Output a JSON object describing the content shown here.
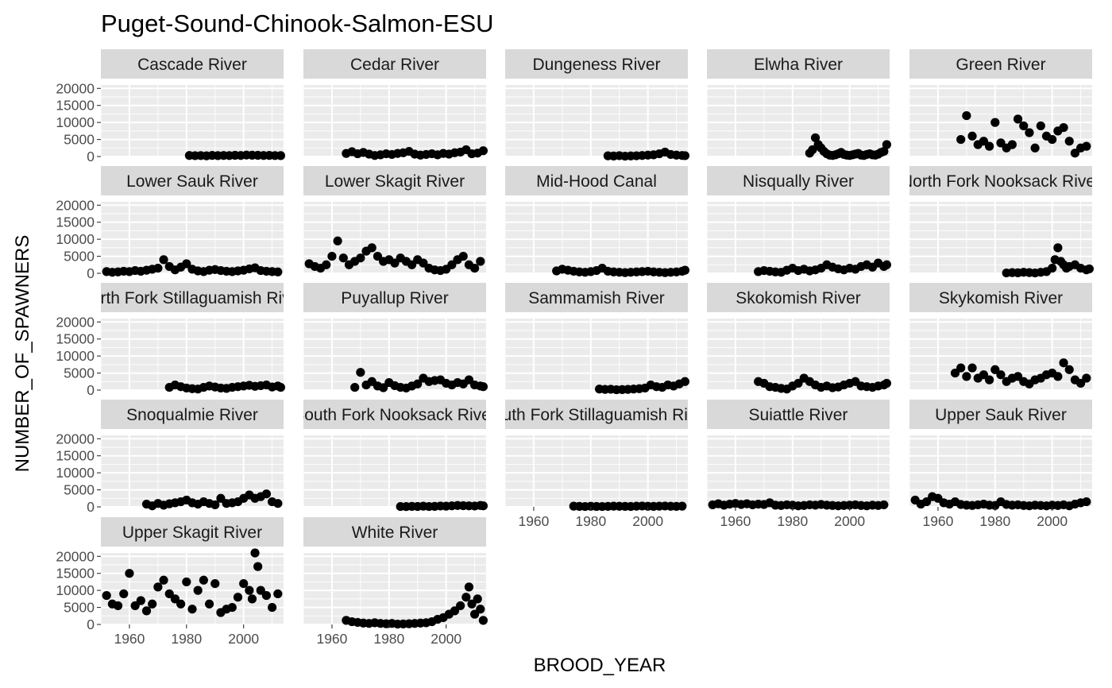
{
  "chart_data": {
    "type": "scatter",
    "title": "Puget-Sound-Chinook-Salmon-ESU",
    "xlabel": "BROOD_YEAR",
    "ylabel": "NUMBER_OF_SPAWNERS",
    "xlim": [
      1950,
      2014
    ],
    "ylim": [
      0,
      21000
    ],
    "x_ticks": [
      1960,
      1980,
      2000
    ],
    "y_ticks": [
      0,
      5000,
      10000,
      15000,
      20000
    ],
    "x_tick_labels": [
      "1960",
      "1980",
      "2000"
    ],
    "y_tick_labels": [
      "0",
      "5000",
      "10000",
      "15000",
      "20000"
    ],
    "grid": true,
    "facet_columns": 5,
    "point_color": "#000000",
    "panel_background": "#ebebeb",
    "strip_background": "#d9d9d9",
    "gridline_color": "#ffffff",
    "panels": [
      {
        "name": "Cascade River",
        "x": [
          1981,
          1983,
          1985,
          1987,
          1989,
          1991,
          1993,
          1995,
          1997,
          1999,
          2001,
          2003,
          2005,
          2007,
          2009,
          2011,
          2013
        ],
        "y": [
          300,
          250,
          280,
          200,
          320,
          260,
          300,
          280,
          350,
          300,
          420,
          380,
          350,
          300,
          320,
          280,
          260
        ]
      },
      {
        "name": "Cedar River",
        "x": [
          1965,
          1967,
          1969,
          1971,
          1973,
          1975,
          1977,
          1979,
          1981,
          1983,
          1985,
          1987,
          1989,
          1991,
          1993,
          1995,
          1997,
          1999,
          2001,
          2003,
          2005,
          2007,
          2009,
          2011,
          2013
        ],
        "y": [
          900,
          1400,
          800,
          1200,
          700,
          300,
          500,
          800,
          600,
          900,
          1100,
          1500,
          700,
          400,
          600,
          800,
          500,
          900,
          700,
          1100,
          1300,
          2000,
          800,
          1000,
          1700
        ]
      },
      {
        "name": "Dungeness River",
        "x": [
          1986,
          1988,
          1990,
          1992,
          1994,
          1996,
          1998,
          2000,
          2002,
          2004,
          2006,
          2008,
          2010,
          2012,
          2013
        ],
        "y": [
          200,
          150,
          250,
          100,
          180,
          220,
          300,
          400,
          500,
          800,
          1300,
          600,
          400,
          300,
          250
        ]
      },
      {
        "name": "Elwha River",
        "x": [
          1986,
          1987,
          1988,
          1989,
          1990,
          1991,
          1992,
          1993,
          1994,
          1995,
          1996,
          1997,
          1998,
          1999,
          2000,
          2001,
          2002,
          2003,
          2004,
          2005,
          2006,
          2007,
          2008,
          2009,
          2010,
          2011,
          2012,
          2013
        ],
        "y": [
          1000,
          2000,
          5500,
          3500,
          2500,
          1500,
          800,
          400,
          300,
          500,
          800,
          1200,
          600,
          400,
          300,
          500,
          700,
          900,
          400,
          300,
          600,
          800,
          500,
          400,
          700,
          1200,
          1500,
          3500
        ]
      },
      {
        "name": "Green River",
        "x": [
          1968,
          1970,
          1972,
          1974,
          1976,
          1978,
          1980,
          1982,
          1984,
          1986,
          1988,
          1990,
          1992,
          1994,
          1996,
          1998,
          2000,
          2002,
          2004,
          2006,
          2008,
          2010,
          2012
        ],
        "y": [
          5000,
          12000,
          6000,
          3500,
          4500,
          3000,
          10000,
          4000,
          2500,
          3500,
          11000,
          9000,
          7000,
          2500,
          9000,
          6000,
          5000,
          7500,
          8500,
          4500,
          1000,
          2500,
          3000
        ]
      },
      {
        "name": "Lower Sauk River",
        "x": [
          1952,
          1954,
          1956,
          1958,
          1960,
          1962,
          1964,
          1966,
          1968,
          1970,
          1972,
          1974,
          1976,
          1978,
          1980,
          1982,
          1984,
          1986,
          1988,
          1990,
          1992,
          1994,
          1996,
          1998,
          2000,
          2002,
          2004,
          2006,
          2008,
          2010,
          2012
        ],
        "y": [
          500,
          300,
          400,
          600,
          500,
          800,
          600,
          900,
          1200,
          1500,
          4000,
          2000,
          1000,
          1800,
          2800,
          1200,
          700,
          500,
          900,
          1100,
          800,
          600,
          500,
          700,
          900,
          1300,
          1600,
          800,
          600,
          500,
          400
        ]
      },
      {
        "name": "Lower Skagit River",
        "x": [
          1952,
          1954,
          1956,
          1958,
          1960,
          1962,
          1964,
          1966,
          1968,
          1970,
          1972,
          1974,
          1976,
          1978,
          1980,
          1982,
          1984,
          1986,
          1988,
          1990,
          1992,
          1994,
          1996,
          1998,
          2000,
          2002,
          2004,
          2006,
          2008,
          2010,
          2012
        ],
        "y": [
          2800,
          2000,
          1500,
          2500,
          5000,
          9500,
          4500,
          2500,
          3500,
          4500,
          6500,
          7500,
          5000,
          3500,
          4000,
          3000,
          4500,
          3500,
          2500,
          4000,
          3000,
          1500,
          1000,
          800,
          1200,
          2500,
          4000,
          5000,
          2500,
          1500,
          3500
        ]
      },
      {
        "name": "Mid-Hood Canal",
        "x": [
          1968,
          1970,
          1972,
          1974,
          1976,
          1978,
          1980,
          1982,
          1984,
          1986,
          1988,
          1990,
          1992,
          1994,
          1996,
          1998,
          2000,
          2002,
          2004,
          2006,
          2008,
          2010,
          2012,
          2013
        ],
        "y": [
          700,
          1200,
          900,
          600,
          400,
          300,
          500,
          800,
          1500,
          600,
          400,
          300,
          200,
          300,
          400,
          500,
          600,
          400,
          300,
          200,
          300,
          400,
          600,
          900
        ]
      },
      {
        "name": "Nisqually River",
        "x": [
          1968,
          1970,
          1972,
          1974,
          1976,
          1978,
          1980,
          1982,
          1984,
          1986,
          1988,
          1990,
          1992,
          1994,
          1996,
          1998,
          2000,
          2002,
          2004,
          2006,
          2008,
          2010,
          2012,
          2013
        ],
        "y": [
          500,
          800,
          600,
          400,
          300,
          900,
          1500,
          800,
          1200,
          700,
          1000,
          1500,
          2500,
          1800,
          1300,
          1000,
          1500,
          1200,
          2000,
          2500,
          1800,
          3000,
          2000,
          2500
        ]
      },
      {
        "name": "North Fork Nooksack River",
        "x": [
          1984,
          1986,
          1988,
          1990,
          1992,
          1994,
          1996,
          1998,
          2000,
          2001,
          2002,
          2003,
          2004,
          2005,
          2006,
          2008,
          2010,
          2012,
          2013
        ],
        "y": [
          100,
          200,
          150,
          300,
          200,
          100,
          300,
          500,
          1500,
          4000,
          7500,
          3500,
          2500,
          1500,
          2000,
          2500,
          1500,
          1000,
          1300
        ]
      },
      {
        "name": "North Fork Stillaguamish River",
        "x": [
          1974,
          1976,
          1978,
          1980,
          1982,
          1984,
          1986,
          1988,
          1990,
          1992,
          1994,
          1996,
          1998,
          2000,
          2002,
          2004,
          2006,
          2008,
          2010,
          2012,
          2013
        ],
        "y": [
          800,
          1500,
          1000,
          600,
          400,
          300,
          800,
          1200,
          900,
          600,
          500,
          800,
          1000,
          1200,
          1400,
          1100,
          1300,
          1500,
          900,
          1200,
          800
        ]
      },
      {
        "name": "Puyallup River",
        "x": [
          1968,
          1970,
          1972,
          1974,
          1976,
          1978,
          1980,
          1982,
          1984,
          1986,
          1988,
          1990,
          1992,
          1994,
          1996,
          1998,
          2000,
          2002,
          2004,
          2006,
          2008,
          2010,
          2012,
          2013
        ],
        "y": [
          800,
          5200,
          1500,
          2500,
          1200,
          700,
          2200,
          1300,
          800,
          600,
          1200,
          1800,
          3500,
          2500,
          2800,
          3000,
          2000,
          1500,
          2200,
          1800,
          3000,
          1500,
          1200,
          1000
        ]
      },
      {
        "name": "Sammamish River",
        "x": [
          1983,
          1985,
          1987,
          1989,
          1991,
          1993,
          1995,
          1997,
          1999,
          2001,
          2003,
          2005,
          2007,
          2009,
          2011,
          2013
        ],
        "y": [
          300,
          200,
          250,
          100,
          150,
          200,
          300,
          400,
          600,
          1500,
          1000,
          800,
          1500,
          1200,
          1800,
          2500
        ]
      },
      {
        "name": "Skokomish River",
        "x": [
          1968,
          1970,
          1972,
          1974,
          1976,
          1978,
          1980,
          1982,
          1984,
          1986,
          1988,
          1990,
          1992,
          1994,
          1996,
          1998,
          2000,
          2002,
          2004,
          2006,
          2008,
          2010,
          2012,
          2013
        ],
        "y": [
          2500,
          2000,
          1000,
          800,
          500,
          300,
          1200,
          2000,
          3500,
          2500,
          1500,
          800,
          1200,
          700,
          900,
          1500,
          2000,
          2500,
          1200,
          1000,
          800,
          1200,
          1500,
          2000
        ]
      },
      {
        "name": "Skykomish River",
        "x": [
          1966,
          1968,
          1970,
          1972,
          1974,
          1976,
          1978,
          1980,
          1982,
          1984,
          1986,
          1988,
          1990,
          1992,
          1994,
          1996,
          1998,
          2000,
          2002,
          2004,
          2006,
          2008,
          2010,
          2012
        ],
        "y": [
          5000,
          6500,
          4000,
          6500,
          3500,
          4500,
          3000,
          6000,
          4500,
          2500,
          3500,
          4000,
          2500,
          1800,
          3000,
          3500,
          4500,
          5000,
          4000,
          8000,
          6000,
          3000,
          2000,
          3500
        ]
      },
      {
        "name": "Snoqualmie River",
        "x": [
          1966,
          1968,
          1970,
          1972,
          1974,
          1976,
          1978,
          1980,
          1982,
          1984,
          1986,
          1988,
          1990,
          1992,
          1994,
          1996,
          1998,
          2000,
          2002,
          2004,
          2006,
          2008,
          2010,
          2012
        ],
        "y": [
          800,
          300,
          1000,
          500,
          900,
          1200,
          1500,
          2000,
          1200,
          800,
          1500,
          1000,
          600,
          2500,
          1000,
          1200,
          1500,
          2500,
          3500,
          2500,
          3000,
          3800,
          1500,
          1000
        ]
      },
      {
        "name": "South Fork Nooksack River",
        "x": [
          1984,
          1986,
          1988,
          1990,
          1992,
          1994,
          1996,
          1998,
          2000,
          2002,
          2004,
          2006,
          2008,
          2010,
          2012,
          2013
        ],
        "y": [
          100,
          80,
          150,
          120,
          200,
          100,
          150,
          250,
          200,
          300,
          400,
          350,
          300,
          250,
          400,
          300
        ]
      },
      {
        "name": "South Fork Stillaguamish River",
        "x": [
          1974,
          1976,
          1978,
          1980,
          1982,
          1984,
          1986,
          1988,
          1990,
          1992,
          1994,
          1996,
          1998,
          2000,
          2002,
          2004,
          2006,
          2008,
          2010,
          2012
        ],
        "y": [
          200,
          150,
          100,
          180,
          120,
          100,
          150,
          200,
          180,
          150,
          120,
          200,
          250,
          180,
          150,
          200,
          250,
          180,
          150,
          200
        ]
      },
      {
        "name": "Suiattle River",
        "x": [
          1952,
          1954,
          1956,
          1958,
          1960,
          1962,
          1964,
          1966,
          1968,
          1970,
          1972,
          1974,
          1976,
          1978,
          1980,
          1982,
          1984,
          1986,
          1988,
          1990,
          1992,
          1994,
          1996,
          1998,
          2000,
          2002,
          2004,
          2006,
          2008,
          2010,
          2012
        ],
        "y": [
          600,
          900,
          500,
          800,
          1000,
          700,
          900,
          600,
          800,
          700,
          1200,
          500,
          400,
          600,
          500,
          300,
          400,
          600,
          500,
          700,
          500,
          400,
          300,
          400,
          500,
          600,
          400,
          300,
          500,
          400,
          600
        ]
      },
      {
        "name": "Upper Sauk River",
        "x": [
          1952,
          1954,
          1956,
          1958,
          1960,
          1962,
          1964,
          1966,
          1968,
          1970,
          1972,
          1974,
          1976,
          1978,
          1980,
          1982,
          1984,
          1986,
          1988,
          1990,
          1992,
          1994,
          1996,
          1998,
          2000,
          2002,
          2004,
          2006,
          2008,
          2010,
          2012
        ],
        "y": [
          2000,
          800,
          1500,
          3000,
          2500,
          1200,
          800,
          1500,
          700,
          500,
          400,
          600,
          800,
          500,
          400,
          1500,
          700,
          500,
          600,
          400,
          300,
          500,
          400,
          300,
          500,
          400,
          600,
          300,
          800,
          1200,
          1500
        ]
      },
      {
        "name": "Upper Skagit River",
        "x": [
          1952,
          1954,
          1956,
          1958,
          1960,
          1962,
          1964,
          1966,
          1968,
          1970,
          1972,
          1974,
          1976,
          1978,
          1980,
          1982,
          1984,
          1986,
          1988,
          1990,
          1992,
          1994,
          1996,
          1998,
          2000,
          2002,
          2003,
          2004,
          2005,
          2006,
          2008,
          2010,
          2012
        ],
        "y": [
          8500,
          6000,
          5500,
          9000,
          15000,
          5500,
          7000,
          4000,
          6000,
          11000,
          13000,
          9000,
          7500,
          6000,
          12500,
          4500,
          10000,
          13000,
          6000,
          12000,
          3500,
          4500,
          5000,
          8000,
          12000,
          10000,
          7500,
          21000,
          17000,
          10000,
          8500,
          5000,
          9000
        ]
      },
      {
        "name": "White River",
        "x": [
          1965,
          1967,
          1969,
          1971,
          1973,
          1975,
          1977,
          1979,
          1981,
          1983,
          1985,
          1987,
          1989,
          1991,
          1993,
          1995,
          1997,
          1999,
          2001,
          2003,
          2005,
          2007,
          2008,
          2009,
          2010,
          2011,
          2012,
          2013
        ],
        "y": [
          1200,
          800,
          600,
          400,
          300,
          500,
          300,
          200,
          300,
          100,
          150,
          200,
          300,
          400,
          500,
          800,
          1500,
          2000,
          3000,
          4000,
          5500,
          8000,
          11000,
          6000,
          3000,
          7500,
          4500,
          1200
        ]
      }
    ]
  }
}
